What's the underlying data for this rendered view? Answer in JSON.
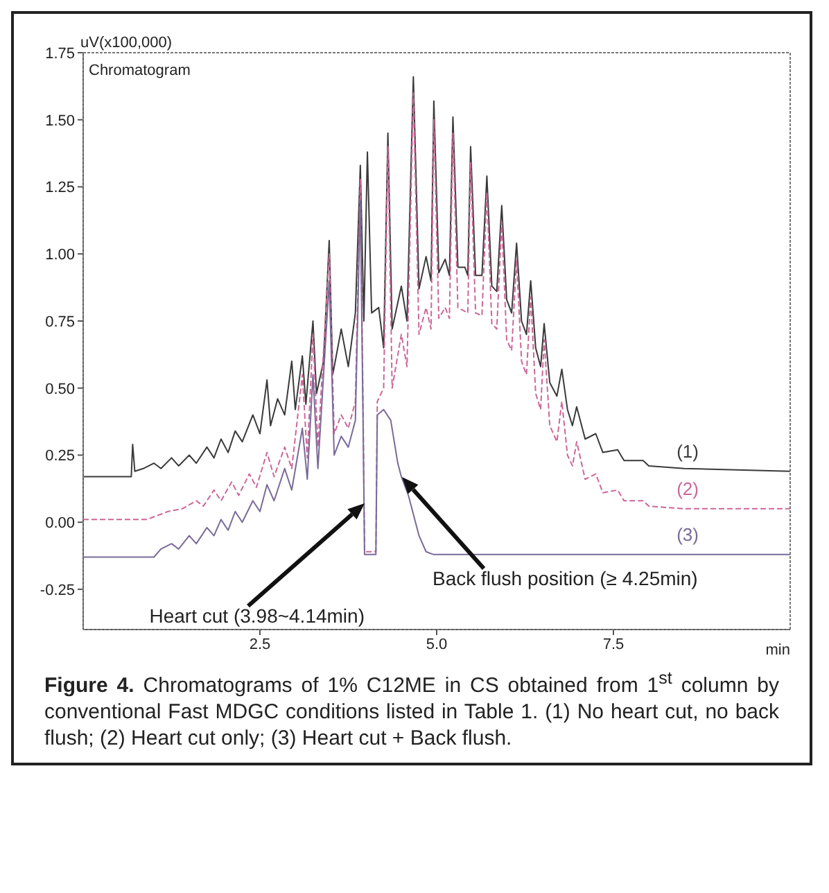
{
  "chart_data": {
    "type": "line",
    "title": "Chromatogram",
    "ylabel": "uV(x100,000)",
    "xlabel": "min",
    "xlim": [
      0,
      10
    ],
    "xticks": [
      2.5,
      {
        "value": 5,
        "label": "5.0"
      },
      7.5
    ],
    "ylim": [
      -0.4,
      1.75
    ],
    "yticks": [
      {
        "value": -0.25,
        "label": "-0.25"
      },
      {
        "value": 0,
        "label": "0.00"
      },
      {
        "value": 0.25,
        "label": "0.25"
      },
      {
        "value": 0.5,
        "label": "0.50"
      },
      {
        "value": 0.75,
        "label": "0.75"
      },
      {
        "value": 1,
        "label": "1.00"
      },
      {
        "value": 1.25,
        "label": "1.25"
      },
      {
        "value": 1.5,
        "label": "1.50"
      },
      {
        "value": 1.75,
        "label": "1.75"
      }
    ],
    "grid": false,
    "marker": "none",
    "legend": false,
    "series": [
      {
        "name": "(1)",
        "color": "#3a3a3a",
        "line_style": "solid",
        "x": [
          0,
          0.68,
          0.7,
          0.73,
          0.85,
          1.0,
          1.1,
          1.25,
          1.35,
          1.5,
          1.6,
          1.75,
          1.85,
          1.95,
          2.05,
          2.15,
          2.25,
          2.4,
          2.5,
          2.6,
          2.65,
          2.75,
          2.85,
          2.95,
          3.0,
          3.1,
          3.15,
          3.25,
          3.3,
          3.4,
          3.48,
          3.53,
          3.65,
          3.75,
          3.85,
          3.92,
          3.97,
          4.02,
          4.08,
          4.18,
          4.25,
          4.31,
          4.37,
          4.5,
          4.58,
          4.67,
          4.75,
          4.85,
          4.92,
          4.96,
          5.03,
          5.12,
          5.18,
          5.23,
          5.3,
          5.4,
          5.44,
          5.48,
          5.55,
          5.64,
          5.71,
          5.78,
          5.85,
          5.92,
          5.99,
          6.06,
          6.13,
          6.2,
          6.27,
          6.33,
          6.4,
          6.47,
          6.52,
          6.6,
          6.7,
          6.77,
          6.85,
          6.92,
          6.98,
          7.1,
          7.25,
          7.35,
          7.56,
          7.65,
          7.92,
          8.0,
          8.5,
          10
        ],
        "values": [
          0.17,
          0.17,
          0.29,
          0.19,
          0.2,
          0.22,
          0.2,
          0.24,
          0.21,
          0.25,
          0.22,
          0.28,
          0.24,
          0.31,
          0.26,
          0.34,
          0.3,
          0.4,
          0.33,
          0.53,
          0.36,
          0.46,
          0.4,
          0.6,
          0.42,
          0.62,
          0.44,
          0.75,
          0.48,
          0.6,
          1.05,
          0.55,
          0.72,
          0.58,
          0.78,
          1.33,
          0.75,
          1.38,
          0.78,
          0.8,
          0.65,
          1.45,
          0.72,
          0.88,
          0.75,
          1.66,
          0.87,
          0.99,
          0.9,
          1.57,
          0.93,
          0.98,
          0.92,
          1.51,
          0.95,
          0.95,
          0.92,
          1.4,
          0.92,
          0.92,
          1.29,
          0.88,
          0.86,
          1.18,
          0.83,
          0.78,
          1.04,
          0.75,
          0.7,
          0.9,
          0.65,
          0.58,
          0.74,
          0.52,
          0.47,
          0.57,
          0.42,
          0.36,
          0.43,
          0.31,
          0.33,
          0.26,
          0.27,
          0.23,
          0.23,
          0.21,
          0.2,
          0.19
        ]
      },
      {
        "name": "(2)",
        "color": "#cc6699",
        "line_style": "dashed",
        "x": [
          0,
          0.9,
          1.2,
          1.4,
          1.6,
          1.7,
          1.85,
          1.95,
          2.1,
          2.2,
          2.35,
          2.45,
          2.6,
          2.7,
          2.85,
          2.95,
          3.1,
          3.17,
          3.25,
          3.32,
          3.48,
          3.55,
          3.65,
          3.75,
          3.85,
          3.92,
          3.96,
          3.98,
          4.14,
          4.16,
          4.25,
          4.31,
          4.37,
          4.5,
          4.58,
          4.67,
          4.75,
          4.85,
          4.92,
          4.96,
          5.03,
          5.12,
          5.18,
          5.23,
          5.3,
          5.44,
          5.48,
          5.55,
          5.64,
          5.71,
          5.78,
          5.85,
          5.92,
          5.99,
          6.06,
          6.13,
          6.2,
          6.27,
          6.33,
          6.4,
          6.47,
          6.52,
          6.6,
          6.7,
          6.77,
          6.85,
          6.92,
          6.98,
          7.1,
          7.25,
          7.35,
          7.56,
          7.65,
          7.92,
          8.0,
          8.5,
          10
        ],
        "values": [
          0.01,
          0.01,
          0.04,
          0.05,
          0.08,
          0.06,
          0.12,
          0.08,
          0.15,
          0.1,
          0.18,
          0.13,
          0.26,
          0.17,
          0.28,
          0.2,
          0.55,
          0.24,
          0.7,
          0.28,
          1.0,
          0.33,
          0.4,
          0.35,
          0.45,
          1.28,
          0.4,
          -0.11,
          -0.11,
          0.45,
          0.5,
          1.4,
          0.5,
          0.7,
          0.58,
          1.6,
          0.7,
          0.8,
          0.72,
          1.5,
          0.76,
          0.8,
          0.76,
          1.45,
          0.8,
          0.78,
          1.34,
          0.78,
          0.77,
          1.23,
          0.74,
          0.72,
          1.12,
          0.68,
          0.64,
          0.98,
          0.6,
          0.55,
          0.84,
          0.48,
          0.42,
          0.68,
          0.36,
          0.3,
          0.45,
          0.25,
          0.21,
          0.3,
          0.16,
          0.18,
          0.11,
          0.12,
          0.08,
          0.08,
          0.06,
          0.05,
          0.05
        ]
      },
      {
        "name": "(3)",
        "color": "#7a6a98",
        "line_style": "solid",
        "x": [
          0,
          1.0,
          1.1,
          1.25,
          1.35,
          1.5,
          1.6,
          1.75,
          1.85,
          1.95,
          2.05,
          2.15,
          2.25,
          2.4,
          2.5,
          2.6,
          2.7,
          2.85,
          2.95,
          3.1,
          3.17,
          3.25,
          3.32,
          3.48,
          3.55,
          3.65,
          3.75,
          3.85,
          3.92,
          3.96,
          3.98,
          4.14,
          4.16,
          4.25,
          4.35,
          4.45,
          4.5,
          4.6,
          4.75,
          4.85,
          4.95,
          10
        ],
        "values": [
          -0.13,
          -0.13,
          -0.1,
          -0.08,
          -0.1,
          -0.05,
          -0.08,
          -0.02,
          -0.05,
          0.01,
          -0.03,
          0.04,
          0.0,
          0.08,
          0.04,
          0.14,
          0.08,
          0.2,
          0.12,
          0.35,
          0.16,
          0.55,
          0.2,
          0.9,
          0.25,
          0.32,
          0.28,
          0.38,
          1.2,
          0.35,
          -0.12,
          -0.12,
          0.4,
          0.42,
          0.38,
          0.22,
          0.17,
          0.1,
          -0.05,
          -0.11,
          -0.12,
          -0.12
        ]
      }
    ],
    "annotations": [
      "Heart cut (3.98~4.14min)",
      "Back flush position (≥ 4.25min)",
      "Figure 4. Chromatograms of 1% C12ME in CS obtained from 1$^{st}$ column by conventional Fast MDGC conditions listed in Table 1.  (1) No heart cut, no back flush; (2) Heart cut only; (3) Heart cut + Back flush."
    ]
  }
}
